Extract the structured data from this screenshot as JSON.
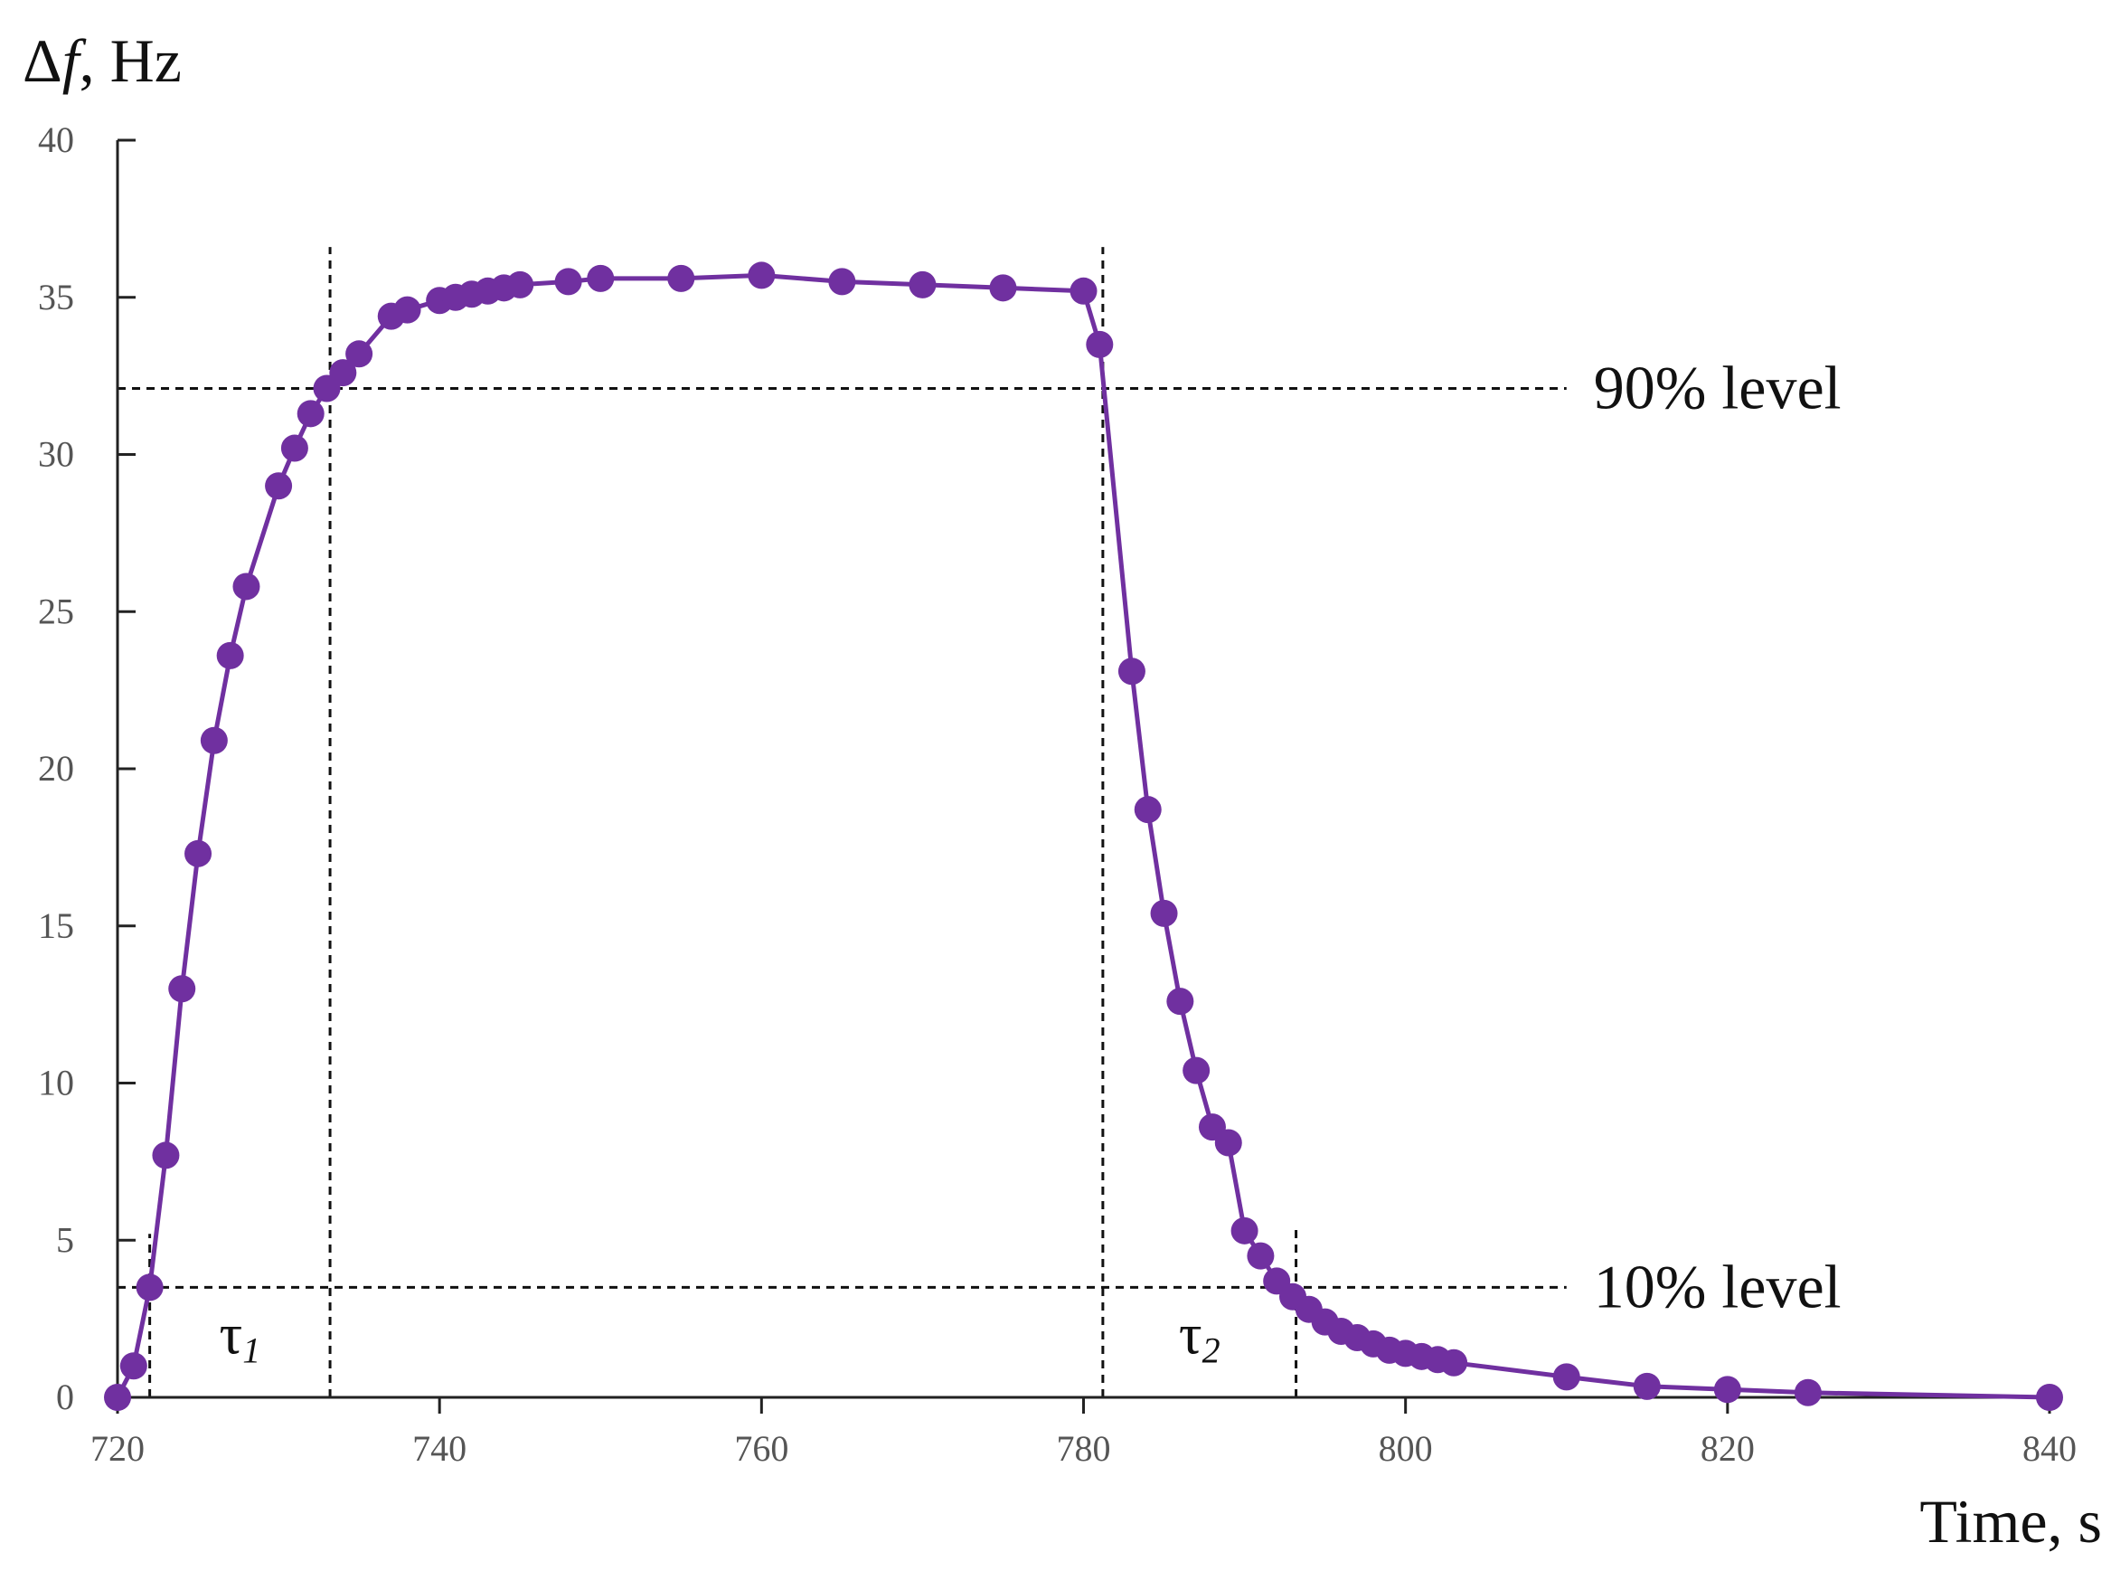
{
  "colors": {
    "series": "#7030A0",
    "axis": "#222222",
    "reference": "#111111"
  },
  "chart_data": {
    "type": "line",
    "y_label_symbol": "Δ",
    "y_label_var": "f",
    "y_label_rest": ", Hz",
    "xlabel": "Time, s",
    "xlim": [
      720,
      840
    ],
    "ylim": [
      0,
      40
    ],
    "x_ticks": [
      720,
      740,
      760,
      780,
      800,
      820,
      840
    ],
    "y_ticks": [
      0,
      5,
      10,
      15,
      20,
      25,
      30,
      35,
      40
    ],
    "grid": false,
    "markers": true,
    "series": [
      {
        "x": [
          720,
          721,
          722,
          723,
          724,
          725,
          726,
          727,
          728,
          730,
          731,
          732,
          733,
          734,
          735,
          737,
          738,
          740,
          741,
          742,
          743,
          744,
          745,
          748,
          750,
          755,
          760,
          765,
          770,
          775,
          780,
          781,
          783,
          784,
          785,
          786,
          787,
          788,
          789,
          790,
          791,
          792,
          793,
          794,
          795,
          796,
          797,
          798,
          799,
          800,
          801,
          802,
          803,
          810,
          815,
          820,
          825,
          840
        ],
        "y": [
          0,
          1,
          3.5,
          7.7,
          13,
          17.3,
          20.9,
          23.6,
          25.8,
          29,
          30.2,
          31.3,
          32.1,
          32.6,
          33.2,
          34.4,
          34.6,
          34.9,
          35.0,
          35.1,
          35.2,
          35.3,
          35.4,
          35.5,
          35.6,
          35.6,
          35.7,
          35.5,
          35.4,
          35.3,
          35.2,
          33.5,
          23.1,
          18.7,
          15.4,
          12.6,
          10.4,
          8.6,
          8.1,
          5.3,
          4.5,
          3.7,
          3.2,
          2.8,
          2.4,
          2.1,
          1.9,
          1.7,
          1.5,
          1.4,
          1.3,
          1.2,
          1.1,
          0.65,
          0.35,
          0.25,
          0.15,
          0
        ]
      }
    ],
    "reference_lines": [
      {
        "orientation": "horizontal",
        "y": 32.1,
        "x_from": 720,
        "x_to": 810,
        "label": "90% level"
      },
      {
        "orientation": "horizontal",
        "y": 3.5,
        "x_from": 720,
        "x_to": 810,
        "label": "10% level"
      },
      {
        "orientation": "vertical",
        "x": 722,
        "y_from": 0,
        "y_to": 5.2
      },
      {
        "orientation": "vertical",
        "x": 733.2,
        "y_from": 0,
        "y_to": 36.6
      },
      {
        "orientation": "vertical",
        "x": 781.2,
        "y_from": 0,
        "y_to": 36.6
      },
      {
        "orientation": "vertical",
        "x": 793.2,
        "y_from": 0,
        "y_to": 5.4
      }
    ],
    "intervals": [
      {
        "symbol": "τ",
        "subscript": "1",
        "x": 727.6,
        "y": 1.4
      },
      {
        "symbol": "τ",
        "subscript": "2",
        "x": 787.2,
        "y": 1.4
      }
    ]
  }
}
